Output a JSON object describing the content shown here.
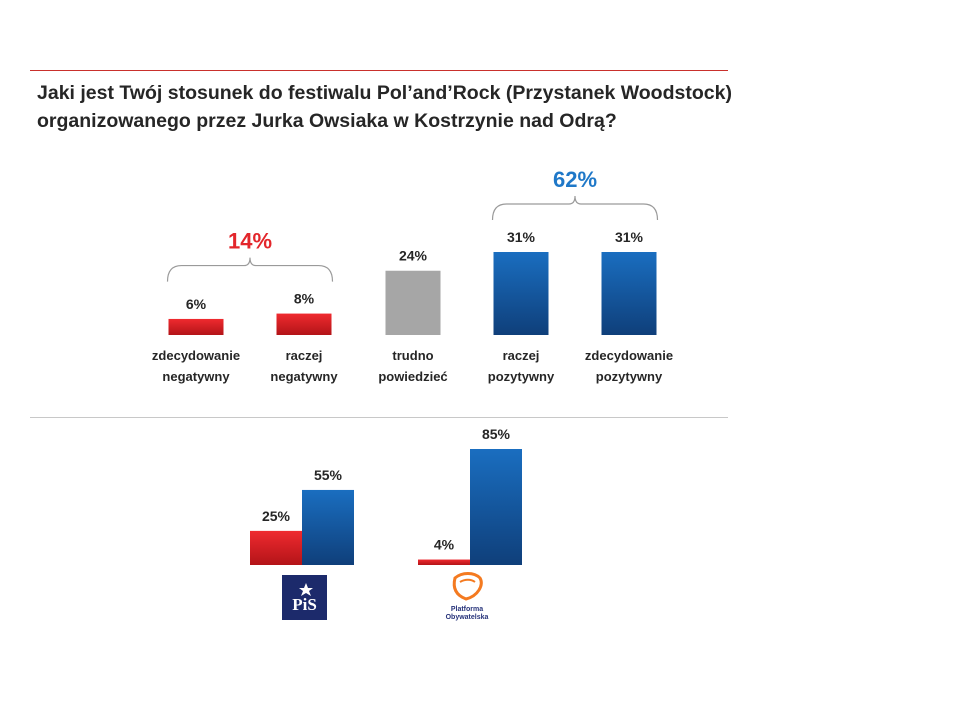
{
  "title_lines": [
    "Jaki jest Twój stosunek do festiwalu Pol’and’Rock  (Przystanek Woodstock)",
    "organizowanego przez Jurka Owsiaka w Kostrzynie nad Odrą?"
  ],
  "colors": {
    "negative": "#e3262b",
    "neutral": "#a6a6a6",
    "positive": "#1a6ec0",
    "positive_dark": "#0f3f7a",
    "negative_total": "#e3262b",
    "positive_total": "#1f78c8"
  },
  "chart_data": [
    {
      "type": "bar",
      "categories": [
        [
          "zdecydowanie",
          "negatywny"
        ],
        [
          "raczej",
          "negatywny"
        ],
        [
          "trudno",
          "powiedzieć"
        ],
        [
          "raczej",
          "pozytywny"
        ],
        [
          "zdecydowanie",
          "pozytywny"
        ]
      ],
      "values": [
        6,
        8,
        24,
        31,
        31
      ],
      "value_labels": [
        "6%",
        "8%",
        "24%",
        "31%",
        "31%"
      ],
      "groups": [
        {
          "name": "negative",
          "label": "14%",
          "members": [
            0,
            1
          ]
        },
        {
          "name": "positive",
          "label": "62%",
          "members": [
            3,
            4
          ]
        }
      ],
      "ylim": [
        0,
        31
      ]
    },
    {
      "type": "bar",
      "categories": [
        "PiS",
        "Platforma Obywatelska"
      ],
      "series": [
        {
          "name": "negative",
          "values": [
            25,
            4
          ],
          "value_labels": [
            "25%",
            "4%"
          ]
        },
        {
          "name": "positive",
          "values": [
            55,
            85
          ],
          "value_labels": [
            "55%",
            "85%"
          ]
        }
      ],
      "ylim": [
        0,
        85
      ]
    }
  ],
  "logos": {
    "pis": {
      "text": "PiS"
    },
    "po": {
      "line1": "Platforma",
      "line2": "Obywatelska"
    }
  }
}
